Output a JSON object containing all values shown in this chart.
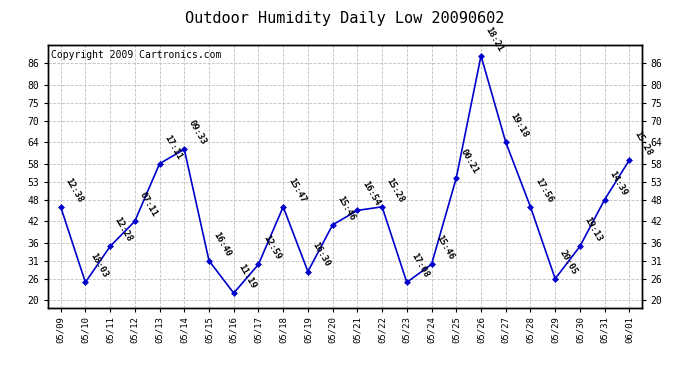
{
  "title": "Outdoor Humidity Daily Low 20090602",
  "copyright": "Copyright 2009 Cartronics.com",
  "x_labels": [
    "05/09",
    "05/10",
    "05/11",
    "05/12",
    "05/13",
    "05/14",
    "05/15",
    "05/16",
    "05/17",
    "05/18",
    "05/19",
    "05/20",
    "05/21",
    "05/22",
    "05/23",
    "05/24",
    "05/25",
    "05/26",
    "05/27",
    "05/28",
    "05/29",
    "05/30",
    "05/31",
    "06/01"
  ],
  "y_values": [
    46,
    25,
    35,
    42,
    58,
    62,
    31,
    22,
    30,
    46,
    28,
    41,
    45,
    46,
    25,
    30,
    54,
    88,
    64,
    46,
    26,
    35,
    48,
    59
  ],
  "time_labels": [
    "12:38",
    "18:03",
    "12:28",
    "07:11",
    "17:11",
    "09:33",
    "16:40",
    "11:19",
    "12:59",
    "15:47",
    "16:30",
    "15:46",
    "16:54",
    "15:28",
    "17:08",
    "15:46",
    "00:21",
    "18:21",
    "19:18",
    "17:56",
    "20:05",
    "19:13",
    "14:39",
    "15:28"
  ],
  "line_color": "#0000cc",
  "marker_color": "#0000cc",
  "grid_color": "#c0c0c0",
  "bg_color": "#ffffff",
  "yticks": [
    20,
    26,
    31,
    36,
    42,
    48,
    53,
    58,
    64,
    70,
    75,
    80,
    86
  ],
  "ylim": [
    18,
    91
  ],
  "title_fontsize": 11,
  "copyright_fontsize": 7,
  "label_fontsize": 6.5
}
